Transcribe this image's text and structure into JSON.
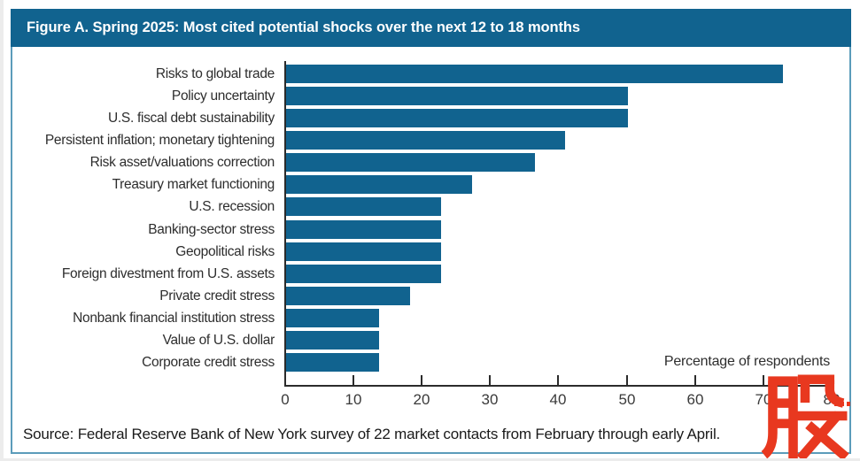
{
  "header": {
    "title": "Figure A. Spring 2025: Most cited potential shocks over the next 12 to 18 months"
  },
  "chart_data": {
    "type": "bar",
    "orientation": "horizontal",
    "title": "Figure A. Spring 2025: Most cited potential shocks over the next 12 to 18 months",
    "categories": [
      "Risks to global trade",
      "Policy uncertainty",
      "U.S. fiscal debt sustainability",
      "Persistent inflation; monetary tightening",
      "Risk asset/valuations correction",
      "Treasury market functioning",
      "U.S. recession",
      "Banking-sector stress",
      "Geopolitical risks",
      "Foreign divestment from U.S. assets",
      "Private credit stress",
      "Nonbank financial institution stress",
      "Value of U.S. dollar",
      "Corporate credit stress"
    ],
    "values": [
      72.7,
      50,
      50,
      40.9,
      36.4,
      27.3,
      22.7,
      22.7,
      22.7,
      22.7,
      18.2,
      13.6,
      13.6,
      13.6
    ],
    "xlabel": "Percentage of respondents",
    "ylabel": "",
    "xticks": [
      0,
      10,
      20,
      30,
      40,
      50,
      60,
      70,
      80
    ],
    "xlim": [
      0,
      80
    ],
    "grid": false,
    "legend": false
  },
  "source": {
    "text": "Source: Federal Reserve Bank of New York survey of 22 market contacts from February through early April."
  },
  "watermark": {
    "character": "股",
    "dots": "..."
  },
  "colors": {
    "header_bg": "#11638F",
    "bar": "#11638F",
    "box_border": "#5B9CBA",
    "axis_line": "#2B2B2B",
    "watermark_red": "#E8381F",
    "title_text": "#FFFFFF"
  }
}
